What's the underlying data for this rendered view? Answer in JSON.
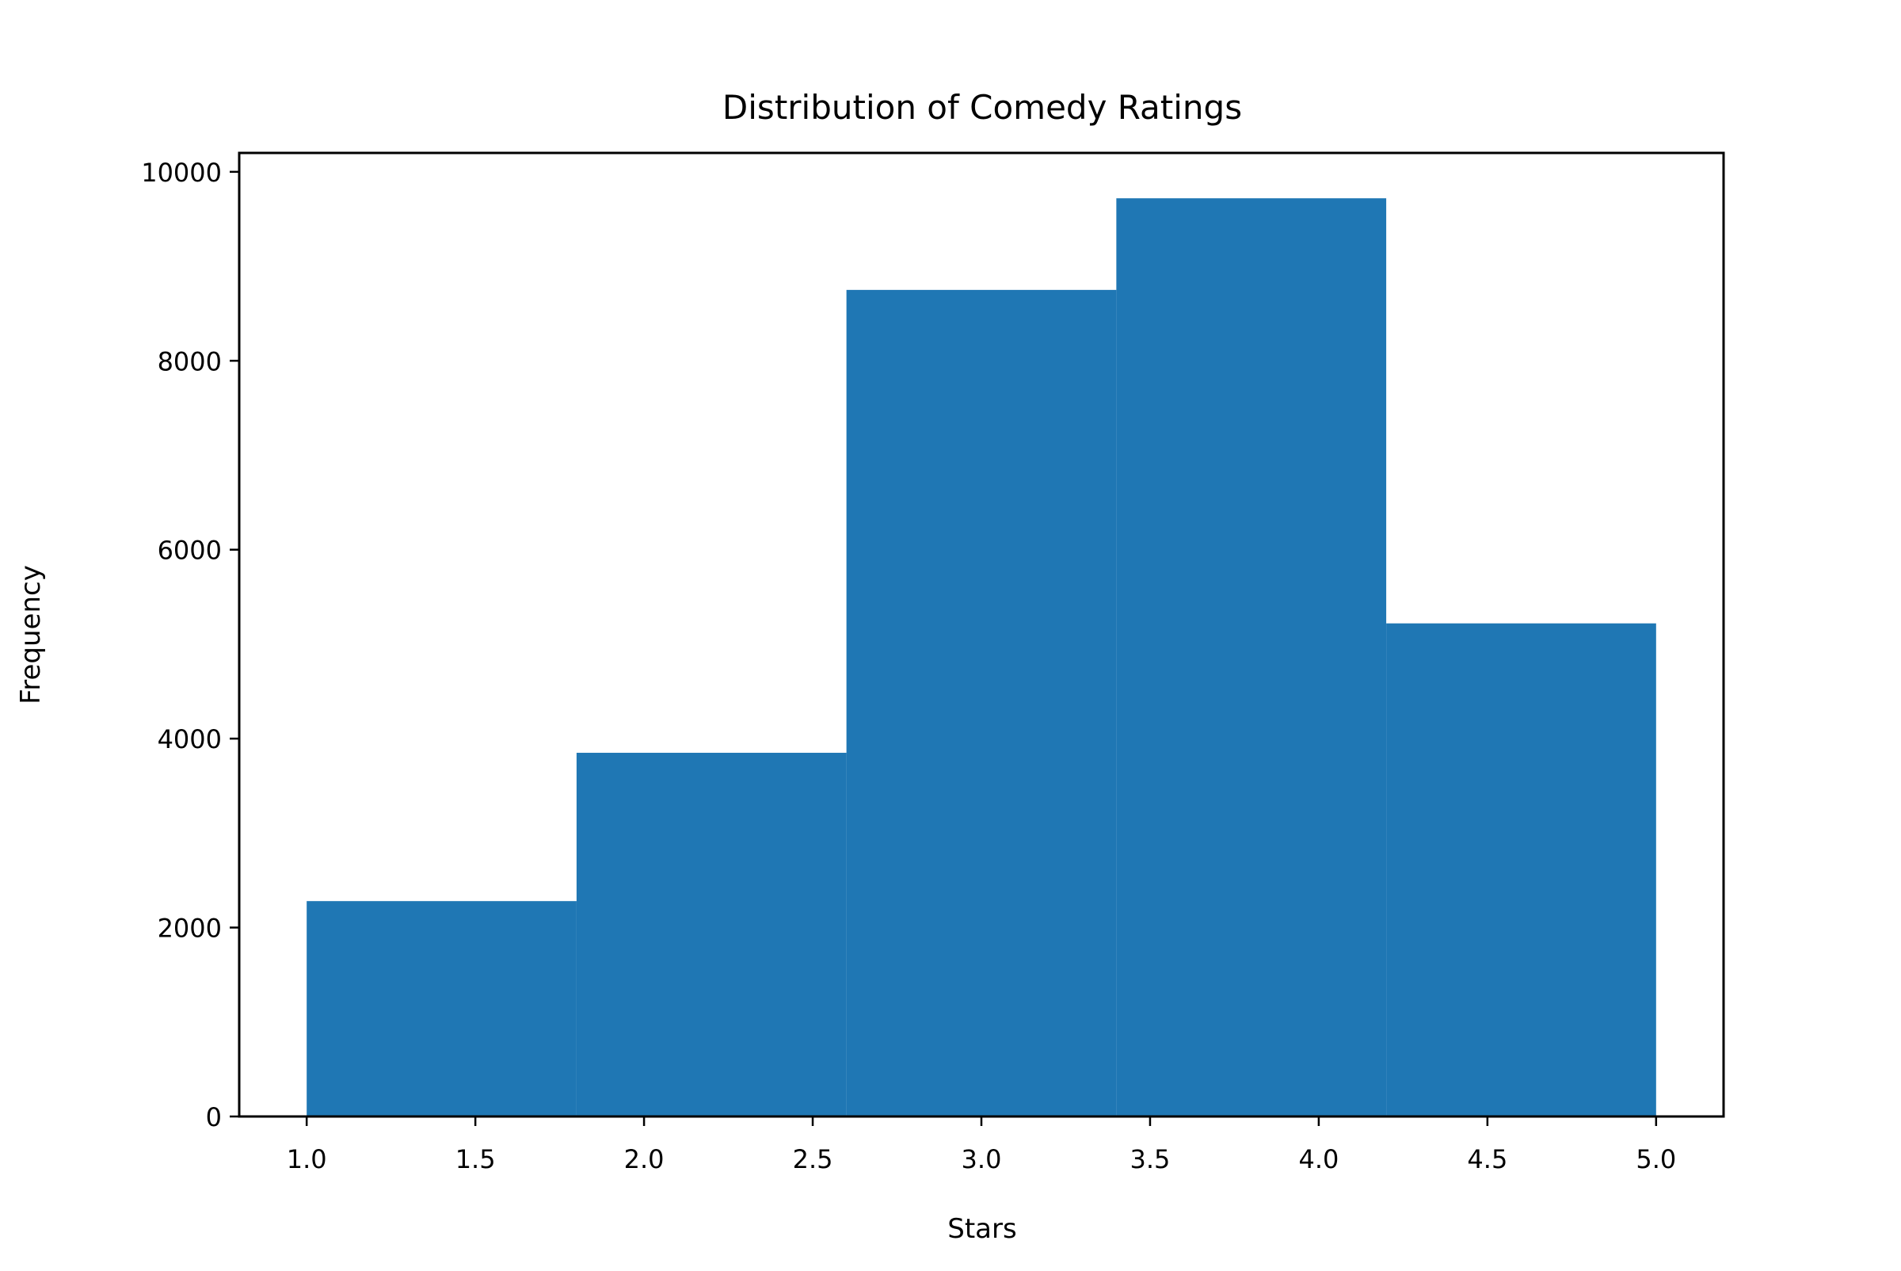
{
  "chart_data": {
    "type": "bar",
    "title": "Distribution of Comedy Ratings",
    "xlabel": "Stars",
    "ylabel": "Frequency",
    "bin_edges": [
      1.0,
      1.8,
      2.6,
      3.4,
      4.2,
      5.0
    ],
    "values": [
      2280,
      3850,
      8750,
      9720,
      5220
    ],
    "xlim": [
      0.8,
      5.2
    ],
    "ylim": [
      0,
      10200
    ],
    "xticks": [
      "1.0",
      "1.5",
      "2.0",
      "2.5",
      "3.0",
      "3.5",
      "4.0",
      "4.5",
      "5.0"
    ],
    "yticks": [
      "0",
      "2000",
      "4000",
      "6000",
      "8000",
      "10000"
    ],
    "bar_color": "#1f77b4",
    "grid": false,
    "legend": "none"
  }
}
